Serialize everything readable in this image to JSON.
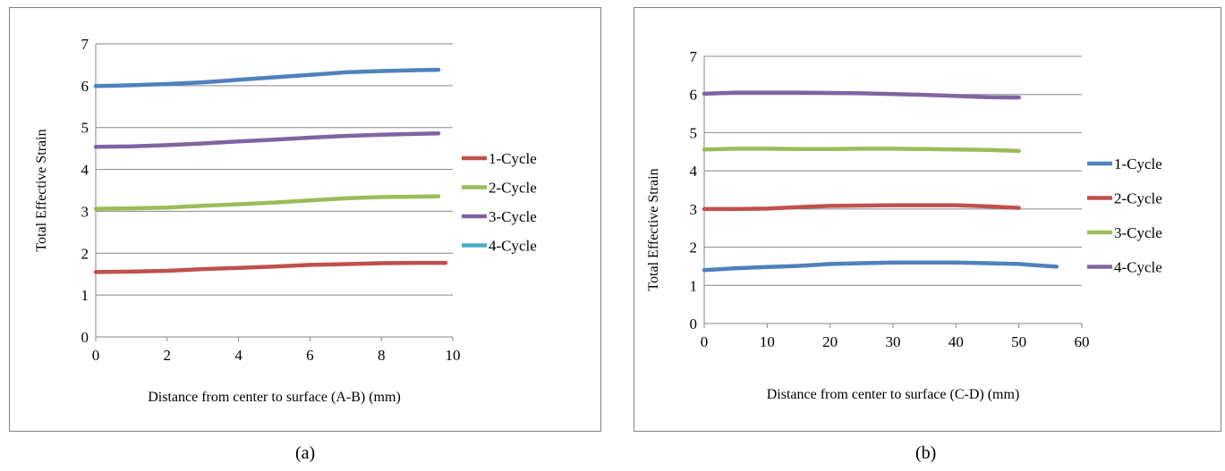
{
  "captions": [
    "(a)",
    "(b)"
  ],
  "colors": {
    "red": "#c0504d",
    "green": "#9bbb59",
    "purple": "#8064a2",
    "blue": "#4f81bd",
    "cyan": "#4bacc6",
    "grid": "#868686",
    "frame": "#7f7f7f"
  },
  "chart_data": [
    {
      "type": "line",
      "title": "",
      "xlabel": "Distance from center to surface (A-B) (mm)",
      "ylabel": "Total Effective Strain",
      "xlim": [
        0,
        10
      ],
      "ylim": [
        0,
        7
      ],
      "xticks": [
        0,
        2,
        4,
        6,
        8,
        10
      ],
      "yticks": [
        0,
        1,
        2,
        3,
        4,
        5,
        6,
        7
      ],
      "grid": "horizontal",
      "legend_position": "right",
      "series": [
        {
          "name": "1-Cycle",
          "color": "#c0504d",
          "x": [
            0,
            1,
            2,
            3,
            4,
            5,
            6,
            7,
            8,
            9,
            9.8
          ],
          "y": [
            1.55,
            1.56,
            1.58,
            1.62,
            1.65,
            1.68,
            1.72,
            1.74,
            1.76,
            1.77,
            1.77
          ]
        },
        {
          "name": "2-Cycle",
          "color": "#9bbb59",
          "x": [
            0,
            1,
            2,
            3,
            4,
            5,
            6,
            7,
            8,
            9,
            9.6
          ],
          "y": [
            3.06,
            3.07,
            3.09,
            3.13,
            3.17,
            3.21,
            3.26,
            3.31,
            3.34,
            3.35,
            3.36
          ]
        },
        {
          "name": "3-Cycle",
          "color": "#8064a2",
          "x": [
            0,
            1,
            2,
            3,
            4,
            5,
            6,
            7,
            8,
            9,
            9.6
          ],
          "y": [
            4.54,
            4.55,
            4.58,
            4.62,
            4.67,
            4.71,
            4.76,
            4.8,
            4.83,
            4.85,
            4.86
          ]
        },
        {
          "name": "4-Cycle",
          "color": "#4bacc6",
          "swatch_only": true,
          "x": [],
          "y": []
        },
        {
          "name": "",
          "color": "#4f81bd",
          "x": [
            0,
            1,
            2,
            3,
            4,
            5,
            6,
            7,
            8,
            9,
            9.6
          ],
          "y": [
            5.99,
            6.01,
            6.04,
            6.08,
            6.14,
            6.2,
            6.26,
            6.32,
            6.35,
            6.37,
            6.38
          ]
        }
      ]
    },
    {
      "type": "line",
      "title": "",
      "xlabel": "Distance from center to surface (C-D) (mm)",
      "ylabel": "Total Effective Strain",
      "xlim": [
        0,
        60
      ],
      "ylim": [
        0,
        7
      ],
      "xticks": [
        0,
        10,
        20,
        30,
        40,
        50,
        60
      ],
      "yticks": [
        0,
        1,
        2,
        3,
        4,
        5,
        6,
        7
      ],
      "grid": "horizontal",
      "legend_position": "right",
      "series": [
        {
          "name": "1-Cycle",
          "color": "#4f81bd",
          "x": [
            0,
            5,
            10,
            15,
            20,
            25,
            30,
            35,
            40,
            45,
            50,
            56
          ],
          "y": [
            1.4,
            1.45,
            1.48,
            1.51,
            1.56,
            1.58,
            1.6,
            1.6,
            1.6,
            1.58,
            1.56,
            1.49
          ]
        },
        {
          "name": "2-Cycle",
          "color": "#c0504d",
          "x": [
            0,
            5,
            10,
            15,
            20,
            25,
            30,
            35,
            40,
            45,
            50
          ],
          "y": [
            3.0,
            3.0,
            3.01,
            3.05,
            3.08,
            3.09,
            3.1,
            3.1,
            3.1,
            3.07,
            3.03
          ]
        },
        {
          "name": "3-Cycle",
          "color": "#9bbb59",
          "x": [
            0,
            5,
            10,
            15,
            20,
            25,
            30,
            35,
            40,
            45,
            50
          ],
          "y": [
            4.56,
            4.58,
            4.58,
            4.57,
            4.57,
            4.58,
            4.58,
            4.57,
            4.56,
            4.55,
            4.52
          ]
        },
        {
          "name": "4-Cycle",
          "color": "#8064a2",
          "x": [
            0,
            5,
            10,
            15,
            20,
            25,
            30,
            35,
            40,
            45,
            50
          ],
          "y": [
            6.02,
            6.05,
            6.05,
            6.05,
            6.04,
            6.03,
            6.01,
            5.99,
            5.96,
            5.93,
            5.92
          ]
        }
      ]
    }
  ]
}
